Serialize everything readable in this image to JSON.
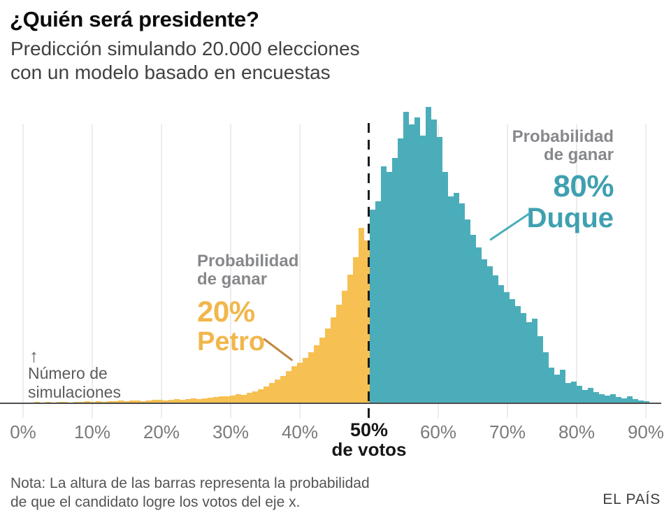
{
  "header": {
    "title": "¿Quién será presidente?",
    "subtitle": [
      "Predicción simulando 20.000 elecciones",
      "con un modelo basado en encuestas"
    ]
  },
  "y_axis": {
    "arrow": "↑",
    "label": [
      "Número de",
      "simulaciones"
    ]
  },
  "x_axis": {
    "ticks": [
      "0%",
      "10%",
      "20%",
      "30%",
      "40%",
      "60%",
      "70%",
      "80%",
      "90%"
    ],
    "highlight": {
      "value": "50%",
      "suffix": "de votos"
    }
  },
  "annotations": {
    "petro": {
      "intro": [
        "Probabilidad",
        "de ganar"
      ],
      "probability": "20%",
      "candidate": "Petro"
    },
    "duque": {
      "intro": [
        "Probabilidad",
        "de ganar"
      ],
      "probability": "80%",
      "candidate": "Duque"
    }
  },
  "footer": {
    "note": [
      "Nota: La altura de las barras representa la probabilidad",
      "de que el candidato logre los votos del eje x."
    ],
    "source": "EL PAÍS"
  },
  "colors": {
    "petro_bar": "#F6C052",
    "duque_bar": "#4BADBA",
    "petro_text": "#F1B74C",
    "duque_text": "#3FA0B0",
    "petro_callout": "#BF8540",
    "duque_callout": "#4BADBA",
    "grid": "#ECECEC",
    "axis": "#4E4E4E",
    "divider": "#1C1C1C"
  },
  "chart_data": {
    "type": "bar",
    "subtype": "histogram",
    "title": "¿Quién será presidente?",
    "xlabel": "% de votos",
    "ylabel": "Número de simulaciones",
    "simulations_total": "20.000",
    "x_axis_ticks_pct": [
      0,
      10,
      20,
      30,
      40,
      50,
      60,
      70,
      80,
      90
    ],
    "threshold_pct": 50,
    "x_start_pct": 0,
    "bin_width_pct": 0.81,
    "grid": true,
    "legend_position": "none",
    "note": "bar heights are relative counts (pixels); y axis has no numeric scale in the original",
    "series": [
      {
        "name": "Petro",
        "win_probability": "20%",
        "range_pct": [
          0,
          50
        ],
        "heights": [
          0,
          0,
          1,
          0,
          1,
          0,
          1,
          1,
          0,
          1,
          1,
          2,
          1,
          2,
          1,
          2,
          2,
          3,
          2,
          3,
          3,
          2,
          3,
          4,
          4,
          3,
          4,
          5,
          4,
          5,
          6,
          5,
          6,
          7,
          8,
          9,
          9,
          10,
          12,
          11,
          14,
          16,
          19,
          23,
          28,
          33,
          38,
          45,
          52,
          57,
          64,
          72,
          82,
          93,
          106,
          122,
          140,
          160,
          183,
          208,
          250,
          232
        ]
      },
      {
        "name": "Duque",
        "win_probability": "80%",
        "range_pct": [
          50,
          90.5
        ],
        "heights": [
          276,
          288,
          338,
          330,
          350,
          378,
          416,
          398,
          408,
          382,
          423,
          405,
          380,
          330,
          295,
          300,
          285,
          262,
          240,
          222,
          205,
          195,
          182,
          168,
          158,
          148,
          138,
          128,
          115,
          120,
          95,
          72,
          50,
          40,
          47,
          28,
          30,
          24,
          18,
          21,
          15,
          12,
          10,
          12,
          8,
          6,
          9,
          5,
          3,
          2
        ]
      }
    ]
  }
}
